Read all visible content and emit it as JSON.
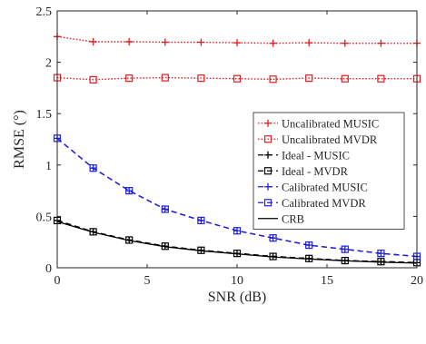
{
  "chart_data": {
    "type": "line",
    "xlabel": "SNR (dB)",
    "ylabel": "RMSE (°)",
    "xlim": [
      0,
      20
    ],
    "ylim": [
      0,
      2.5
    ],
    "x_ticks": [
      "0",
      "5",
      "10",
      "15",
      "20"
    ],
    "y_ticks": [
      "0",
      "0.5",
      "1",
      "1.5",
      "2",
      "2.5"
    ],
    "grid": false,
    "legend_position": "right",
    "x": [
      0,
      2,
      4,
      6,
      8,
      10,
      12,
      14,
      16,
      18,
      20
    ],
    "series": [
      {
        "name": "Uncalibrated MUSIC",
        "color": "#e41a1c",
        "line": "dotted",
        "marker": "plus",
        "values": [
          2.25,
          2.2,
          2.2,
          2.195,
          2.195,
          2.19,
          2.185,
          2.19,
          2.185,
          2.185,
          2.185
        ]
      },
      {
        "name": "Uncalibrated MVDR",
        "color": "#e41a1c",
        "line": "dotted",
        "marker": "square",
        "values": [
          1.85,
          1.83,
          1.845,
          1.85,
          1.845,
          1.84,
          1.835,
          1.845,
          1.84,
          1.84,
          1.84
        ]
      },
      {
        "name": "Ideal - MUSIC",
        "color": "#000000",
        "line": "dashed",
        "marker": "plus",
        "values": [
          0.46,
          0.35,
          0.27,
          0.21,
          0.17,
          0.14,
          0.11,
          0.09,
          0.07,
          0.06,
          0.05
        ]
      },
      {
        "name": "Ideal - MVDR",
        "color": "#000000",
        "line": "dashed",
        "marker": "square",
        "values": [
          0.46,
          0.35,
          0.27,
          0.21,
          0.17,
          0.14,
          0.11,
          0.09,
          0.07,
          0.06,
          0.05
        ]
      },
      {
        "name": "Calibrated MUSIC",
        "color": "#1f1fe0",
        "line": "dashed",
        "marker": "plus",
        "values": [
          1.26,
          0.97,
          0.75,
          0.57,
          0.46,
          0.36,
          0.29,
          0.22,
          0.18,
          0.14,
          0.11
        ]
      },
      {
        "name": "Calibrated MVDR",
        "color": "#1f1fe0",
        "line": "dashed",
        "marker": "square",
        "values": [
          1.26,
          0.97,
          0.75,
          0.57,
          0.46,
          0.36,
          0.29,
          0.22,
          0.18,
          0.14,
          0.11
        ]
      },
      {
        "name": "CRB",
        "color": "#000000",
        "line": "solid",
        "marker": "none",
        "values": [
          0.45,
          0.345,
          0.265,
          0.205,
          0.165,
          0.135,
          0.105,
          0.085,
          0.068,
          0.055,
          0.045
        ]
      }
    ]
  }
}
